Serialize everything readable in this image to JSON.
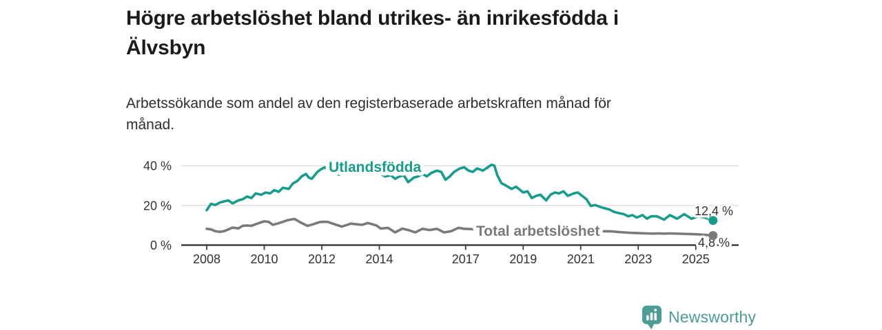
{
  "header": {
    "title_lines": [
      "Högre arbetslöshet bland utrikes- än inrikesfödda i",
      "Älvsbyn"
    ],
    "subtitle_lines": [
      "Arbetssökande som andel av den registerbaserade arbetskraften månad för",
      "månad."
    ]
  },
  "chart_data": {
    "type": "line",
    "title": "Högre arbetslöshet bland utrikes- än inrikesfödda i Älvsbyn",
    "subtitle": "Arbetssökande som andel av den registerbaserade arbetskraften månad för månad.",
    "unit": "%",
    "x_range": [
      2008,
      2025.6
    ],
    "ylim": [
      0,
      44
    ],
    "grid": "horizontal-only",
    "legend_position": "inline-labels-on-lines",
    "colors": {
      "utlandsfodda": "#169c8d",
      "total": "#7a7a7a",
      "axis": "#3d3d3d",
      "gridline": "#d9d9d9",
      "tick_text": "#333333"
    },
    "y_ticks": [
      {
        "value": 0,
        "label": "0 %"
      },
      {
        "value": 20,
        "label": "20 %"
      },
      {
        "value": 40,
        "label": "40 %"
      }
    ],
    "x_ticks": [
      {
        "value": 2008,
        "label": "2008"
      },
      {
        "value": 2010,
        "label": "2010"
      },
      {
        "value": 2012,
        "label": "2012"
      },
      {
        "value": 2014,
        "label": "2014"
      },
      {
        "value": 2017,
        "label": "2017"
      },
      {
        "value": 2019,
        "label": "2019"
      },
      {
        "value": 2021,
        "label": "2021"
      },
      {
        "value": 2023,
        "label": "2023"
      },
      {
        "value": 2025,
        "label": "2025"
      }
    ],
    "series": [
      {
        "id": "utlandsfodda",
        "name": "Utlandsfödda",
        "color": "#169c8d",
        "end_label": "12,4 %",
        "end_value": 12.4,
        "points": [
          [
            2008.0,
            17.6
          ],
          [
            2008.15,
            20.8
          ],
          [
            2008.3,
            20.2
          ],
          [
            2008.45,
            21.4
          ],
          [
            2008.6,
            22.0
          ],
          [
            2008.75,
            22.5
          ],
          [
            2008.9,
            21.0
          ],
          [
            2009.1,
            22.5
          ],
          [
            2009.25,
            23.1
          ],
          [
            2009.4,
            24.5
          ],
          [
            2009.55,
            23.7
          ],
          [
            2009.7,
            26.0
          ],
          [
            2009.9,
            25.4
          ],
          [
            2010.05,
            26.5
          ],
          [
            2010.2,
            26.0
          ],
          [
            2010.35,
            27.7
          ],
          [
            2010.5,
            26.8
          ],
          [
            2010.65,
            28.9
          ],
          [
            2010.85,
            28.3
          ],
          [
            2011.0,
            31.1
          ],
          [
            2011.15,
            32.3
          ],
          [
            2011.3,
            34.6
          ],
          [
            2011.45,
            35.8
          ],
          [
            2011.55,
            34.0
          ],
          [
            2011.65,
            33.4
          ],
          [
            2011.85,
            36.9
          ],
          [
            2011.95,
            38.0
          ],
          [
            2012.1,
            39.2
          ],
          [
            2012.2,
            38.2
          ],
          [
            2012.4,
            36.5
          ],
          [
            2012.6,
            35.5
          ],
          [
            2012.8,
            36.5
          ],
          [
            2013.0,
            37.5
          ],
          [
            2013.2,
            36.5
          ],
          [
            2013.4,
            37.0
          ],
          [
            2013.6,
            36.0
          ],
          [
            2013.8,
            36.3
          ],
          [
            2014.05,
            35.8
          ],
          [
            2014.2,
            34.6
          ],
          [
            2014.4,
            35.2
          ],
          [
            2014.55,
            33.4
          ],
          [
            2014.7,
            34.6
          ],
          [
            2014.85,
            35.2
          ],
          [
            2015.0,
            31.7
          ],
          [
            2015.2,
            34.0
          ],
          [
            2015.35,
            34.6
          ],
          [
            2015.5,
            35.8
          ],
          [
            2015.65,
            34.6
          ],
          [
            2015.8,
            36.3
          ],
          [
            2016.0,
            37.5
          ],
          [
            2016.15,
            36.9
          ],
          [
            2016.3,
            32.9
          ],
          [
            2016.45,
            34.6
          ],
          [
            2016.6,
            36.9
          ],
          [
            2016.8,
            38.6
          ],
          [
            2016.95,
            39.2
          ],
          [
            2017.1,
            37.5
          ],
          [
            2017.25,
            36.9
          ],
          [
            2017.4,
            38.6
          ],
          [
            2017.6,
            37.5
          ],
          [
            2017.75,
            39.0
          ],
          [
            2017.9,
            40.5
          ],
          [
            2018.0,
            40.0
          ],
          [
            2018.1,
            35.2
          ],
          [
            2018.25,
            31.1
          ],
          [
            2018.4,
            30.0
          ],
          [
            2018.6,
            28.3
          ],
          [
            2018.75,
            29.4
          ],
          [
            2018.9,
            27.7
          ],
          [
            2019.0,
            26.5
          ],
          [
            2019.15,
            27.1
          ],
          [
            2019.3,
            23.7
          ],
          [
            2019.45,
            24.8
          ],
          [
            2019.6,
            25.4
          ],
          [
            2019.8,
            22.5
          ],
          [
            2019.95,
            25.4
          ],
          [
            2020.1,
            26.5
          ],
          [
            2020.25,
            26.0
          ],
          [
            2020.4,
            27.1
          ],
          [
            2020.55,
            24.8
          ],
          [
            2020.75,
            26.0
          ],
          [
            2020.9,
            26.5
          ],
          [
            2021.05,
            24.8
          ],
          [
            2021.2,
            23.1
          ],
          [
            2021.35,
            19.7
          ],
          [
            2021.5,
            20.2
          ],
          [
            2021.7,
            19.1
          ],
          [
            2021.85,
            18.5
          ],
          [
            2022.0,
            17.9
          ],
          [
            2022.15,
            16.8
          ],
          [
            2022.3,
            16.2
          ],
          [
            2022.5,
            15.6
          ],
          [
            2022.65,
            14.5
          ],
          [
            2022.8,
            15.1
          ],
          [
            2022.95,
            13.9
          ],
          [
            2023.15,
            15.1
          ],
          [
            2023.3,
            13.3
          ],
          [
            2023.45,
            14.5
          ],
          [
            2023.65,
            14.5
          ],
          [
            2023.9,
            12.8
          ],
          [
            2024.1,
            15.1
          ],
          [
            2024.35,
            13.3
          ],
          [
            2024.6,
            15.6
          ],
          [
            2024.85,
            13.3
          ],
          [
            2025.1,
            14.5
          ],
          [
            2025.3,
            13.9
          ],
          [
            2025.45,
            13.3
          ],
          [
            2025.6,
            12.4
          ]
        ]
      },
      {
        "id": "total",
        "name": "Total arbetslöshet",
        "color": "#7a7a7a",
        "end_label": "4,8 %",
        "end_value": 4.8,
        "points": [
          [
            2008.0,
            8.2
          ],
          [
            2008.15,
            7.9
          ],
          [
            2008.3,
            7.0
          ],
          [
            2008.45,
            6.7
          ],
          [
            2008.6,
            7.0
          ],
          [
            2008.75,
            7.9
          ],
          [
            2008.9,
            8.8
          ],
          [
            2009.1,
            8.4
          ],
          [
            2009.25,
            9.7
          ],
          [
            2009.4,
            9.9
          ],
          [
            2009.55,
            9.7
          ],
          [
            2009.7,
            10.5
          ],
          [
            2009.85,
            11.3
          ],
          [
            2010.0,
            12.0
          ],
          [
            2010.15,
            11.7
          ],
          [
            2010.3,
            10.2
          ],
          [
            2010.45,
            10.8
          ],
          [
            2010.6,
            11.5
          ],
          [
            2010.8,
            12.5
          ],
          [
            2011.05,
            13.2
          ],
          [
            2011.3,
            11.1
          ],
          [
            2011.5,
            9.7
          ],
          [
            2011.7,
            10.5
          ],
          [
            2011.9,
            11.5
          ],
          [
            2012.0,
            11.7
          ],
          [
            2012.2,
            11.7
          ],
          [
            2012.5,
            10.2
          ],
          [
            2012.7,
            9.3
          ],
          [
            2012.9,
            10.3
          ],
          [
            2013.0,
            10.8
          ],
          [
            2013.2,
            10.5
          ],
          [
            2013.4,
            10.2
          ],
          [
            2013.6,
            11.1
          ],
          [
            2013.9,
            9.9
          ],
          [
            2014.05,
            8.3
          ],
          [
            2014.3,
            8.7
          ],
          [
            2014.55,
            6.4
          ],
          [
            2014.8,
            8.3
          ],
          [
            2015.0,
            7.6
          ],
          [
            2015.25,
            6.4
          ],
          [
            2015.5,
            8.2
          ],
          [
            2015.75,
            7.6
          ],
          [
            2016.0,
            8.2
          ],
          [
            2016.25,
            6.4
          ],
          [
            2016.5,
            7.0
          ],
          [
            2016.75,
            8.7
          ],
          [
            2016.95,
            8.2
          ],
          [
            2017.35,
            8.0
          ],
          [
            2017.6,
            7.6
          ],
          [
            2018.0,
            7.2
          ],
          [
            2018.5,
            6.9
          ],
          [
            2019.0,
            7.0
          ],
          [
            2019.5,
            7.2
          ],
          [
            2020.0,
            7.6
          ],
          [
            2020.5,
            7.4
          ],
          [
            2021.0,
            7.2
          ],
          [
            2021.5,
            7.1
          ],
          [
            2021.8,
            7.0
          ],
          [
            2022.1,
            6.9
          ],
          [
            2022.3,
            6.6
          ],
          [
            2022.5,
            6.4
          ],
          [
            2022.7,
            6.2
          ],
          [
            2022.9,
            6.1
          ],
          [
            2023.1,
            6.0
          ],
          [
            2023.3,
            5.9
          ],
          [
            2023.5,
            5.8
          ],
          [
            2023.7,
            5.9
          ],
          [
            2023.9,
            5.8
          ],
          [
            2024.1,
            5.9
          ],
          [
            2024.3,
            5.8
          ],
          [
            2024.5,
            5.7
          ],
          [
            2024.7,
            5.6
          ],
          [
            2024.9,
            5.5
          ],
          [
            2025.1,
            5.4
          ],
          [
            2025.3,
            5.2
          ],
          [
            2025.6,
            4.8
          ]
        ]
      }
    ]
  },
  "logo": {
    "text": "Newsworthy",
    "color": "#4b9c94",
    "icon": "newsworthy-bars-icon"
  }
}
